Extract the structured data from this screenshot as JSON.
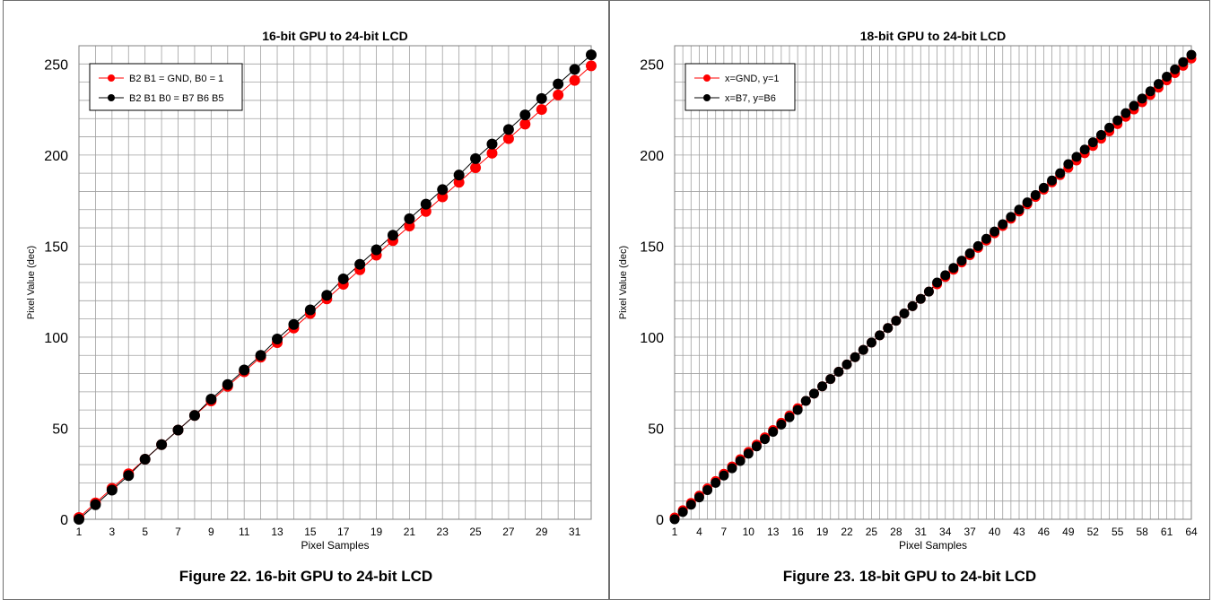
{
  "chart_data": [
    {
      "type": "scatter",
      "title": "16-bit GPU to 24-bit LCD",
      "xlabel": "Pixel Samples",
      "ylabel": "Pixel Value  (dec)",
      "xlim": [
        1,
        32
      ],
      "ylim": [
        0,
        260
      ],
      "x_ticks": [
        1,
        3,
        5,
        7,
        9,
        11,
        13,
        15,
        17,
        19,
        21,
        23,
        25,
        27,
        29,
        31
      ],
      "y_ticks": [
        0,
        50,
        100,
        150,
        200,
        250
      ],
      "grid": true,
      "legend_position": "top-left",
      "series": [
        {
          "name": "B2 B1 = GND, B0 = 1",
          "color": "#ff0000",
          "x": [
            1,
            2,
            3,
            4,
            5,
            6,
            7,
            8,
            9,
            10,
            11,
            12,
            13,
            14,
            15,
            16,
            17,
            18,
            19,
            20,
            21,
            22,
            23,
            24,
            25,
            26,
            27,
            28,
            29,
            30,
            31,
            32
          ],
          "y": [
            1,
            9,
            17,
            25,
            33,
            41,
            49,
            57,
            65,
            73,
            81,
            89,
            97,
            105,
            113,
            121,
            129,
            137,
            145,
            153,
            161,
            169,
            177,
            185,
            193,
            201,
            209,
            217,
            225,
            233,
            241,
            249
          ]
        },
        {
          "name": "B2 B1 B0 = B7 B6 B5",
          "color": "#000000",
          "x": [
            1,
            2,
            3,
            4,
            5,
            6,
            7,
            8,
            9,
            10,
            11,
            12,
            13,
            14,
            15,
            16,
            17,
            18,
            19,
            20,
            21,
            22,
            23,
            24,
            25,
            26,
            27,
            28,
            29,
            30,
            31,
            32
          ],
          "y": [
            0,
            8,
            16,
            24,
            33,
            41,
            49,
            57,
            66,
            74,
            82,
            90,
            99,
            107,
            115,
            123,
            132,
            140,
            148,
            156,
            165,
            173,
            181,
            189,
            198,
            206,
            214,
            222,
            231,
            239,
            247,
            255
          ]
        }
      ]
    },
    {
      "type": "scatter",
      "title": "18-bit GPU to 24-bit LCD",
      "xlabel": "Pixel Samples",
      "ylabel": "Pixel Value  (dec)",
      "xlim": [
        1,
        64
      ],
      "ylim": [
        0,
        260
      ],
      "x_ticks": [
        1,
        4,
        7,
        10,
        13,
        16,
        19,
        22,
        25,
        28,
        31,
        34,
        37,
        40,
        43,
        46,
        49,
        52,
        55,
        58,
        61,
        64
      ],
      "y_ticks": [
        0,
        50,
        100,
        150,
        200,
        250
      ],
      "grid": true,
      "legend_position": "top-left",
      "series": [
        {
          "name": "x=GND, y=1",
          "color": "#ff0000",
          "x": [
            1,
            2,
            3,
            4,
            5,
            6,
            7,
            8,
            9,
            10,
            11,
            12,
            13,
            14,
            15,
            16,
            17,
            18,
            19,
            20,
            21,
            22,
            23,
            24,
            25,
            26,
            27,
            28,
            29,
            30,
            31,
            32,
            33,
            34,
            35,
            36,
            37,
            38,
            39,
            40,
            41,
            42,
            43,
            44,
            45,
            46,
            47,
            48,
            49,
            50,
            51,
            52,
            53,
            54,
            55,
            56,
            57,
            58,
            59,
            60,
            61,
            62,
            63,
            64
          ],
          "y": [
            1,
            5,
            9,
            13,
            17,
            21,
            25,
            29,
            33,
            37,
            41,
            45,
            49,
            53,
            57,
            61,
            65,
            69,
            73,
            77,
            81,
            85,
            89,
            93,
            97,
            101,
            105,
            109,
            113,
            117,
            121,
            125,
            129,
            133,
            137,
            141,
            145,
            149,
            153,
            157,
            161,
            165,
            169,
            173,
            177,
            181,
            185,
            189,
            193,
            197,
            201,
            205,
            209,
            213,
            217,
            221,
            225,
            229,
            233,
            237,
            241,
            245,
            249,
            253
          ]
        },
        {
          "name": "x=B7, y=B6",
          "color": "#000000",
          "x": [
            1,
            2,
            3,
            4,
            5,
            6,
            7,
            8,
            9,
            10,
            11,
            12,
            13,
            14,
            15,
            16,
            17,
            18,
            19,
            20,
            21,
            22,
            23,
            24,
            25,
            26,
            27,
            28,
            29,
            30,
            31,
            32,
            33,
            34,
            35,
            36,
            37,
            38,
            39,
            40,
            41,
            42,
            43,
            44,
            45,
            46,
            47,
            48,
            49,
            50,
            51,
            52,
            53,
            54,
            55,
            56,
            57,
            58,
            59,
            60,
            61,
            62,
            63,
            64
          ],
          "y": [
            0,
            4,
            8,
            12,
            16,
            20,
            24,
            28,
            32,
            36,
            40,
            44,
            48,
            52,
            56,
            60,
            65,
            69,
            73,
            77,
            81,
            85,
            89,
            93,
            97,
            101,
            105,
            109,
            113,
            117,
            121,
            125,
            130,
            134,
            138,
            142,
            146,
            150,
            154,
            158,
            162,
            166,
            170,
            174,
            178,
            182,
            186,
            190,
            195,
            199,
            203,
            207,
            211,
            215,
            219,
            223,
            227,
            231,
            235,
            239,
            243,
            247,
            251,
            255
          ]
        }
      ]
    }
  ],
  "captions": {
    "left": "Figure 22. 16-bit GPU to 24-bit LCD",
    "right": "Figure 23. 18-bit GPU to 24-bit LCD"
  }
}
